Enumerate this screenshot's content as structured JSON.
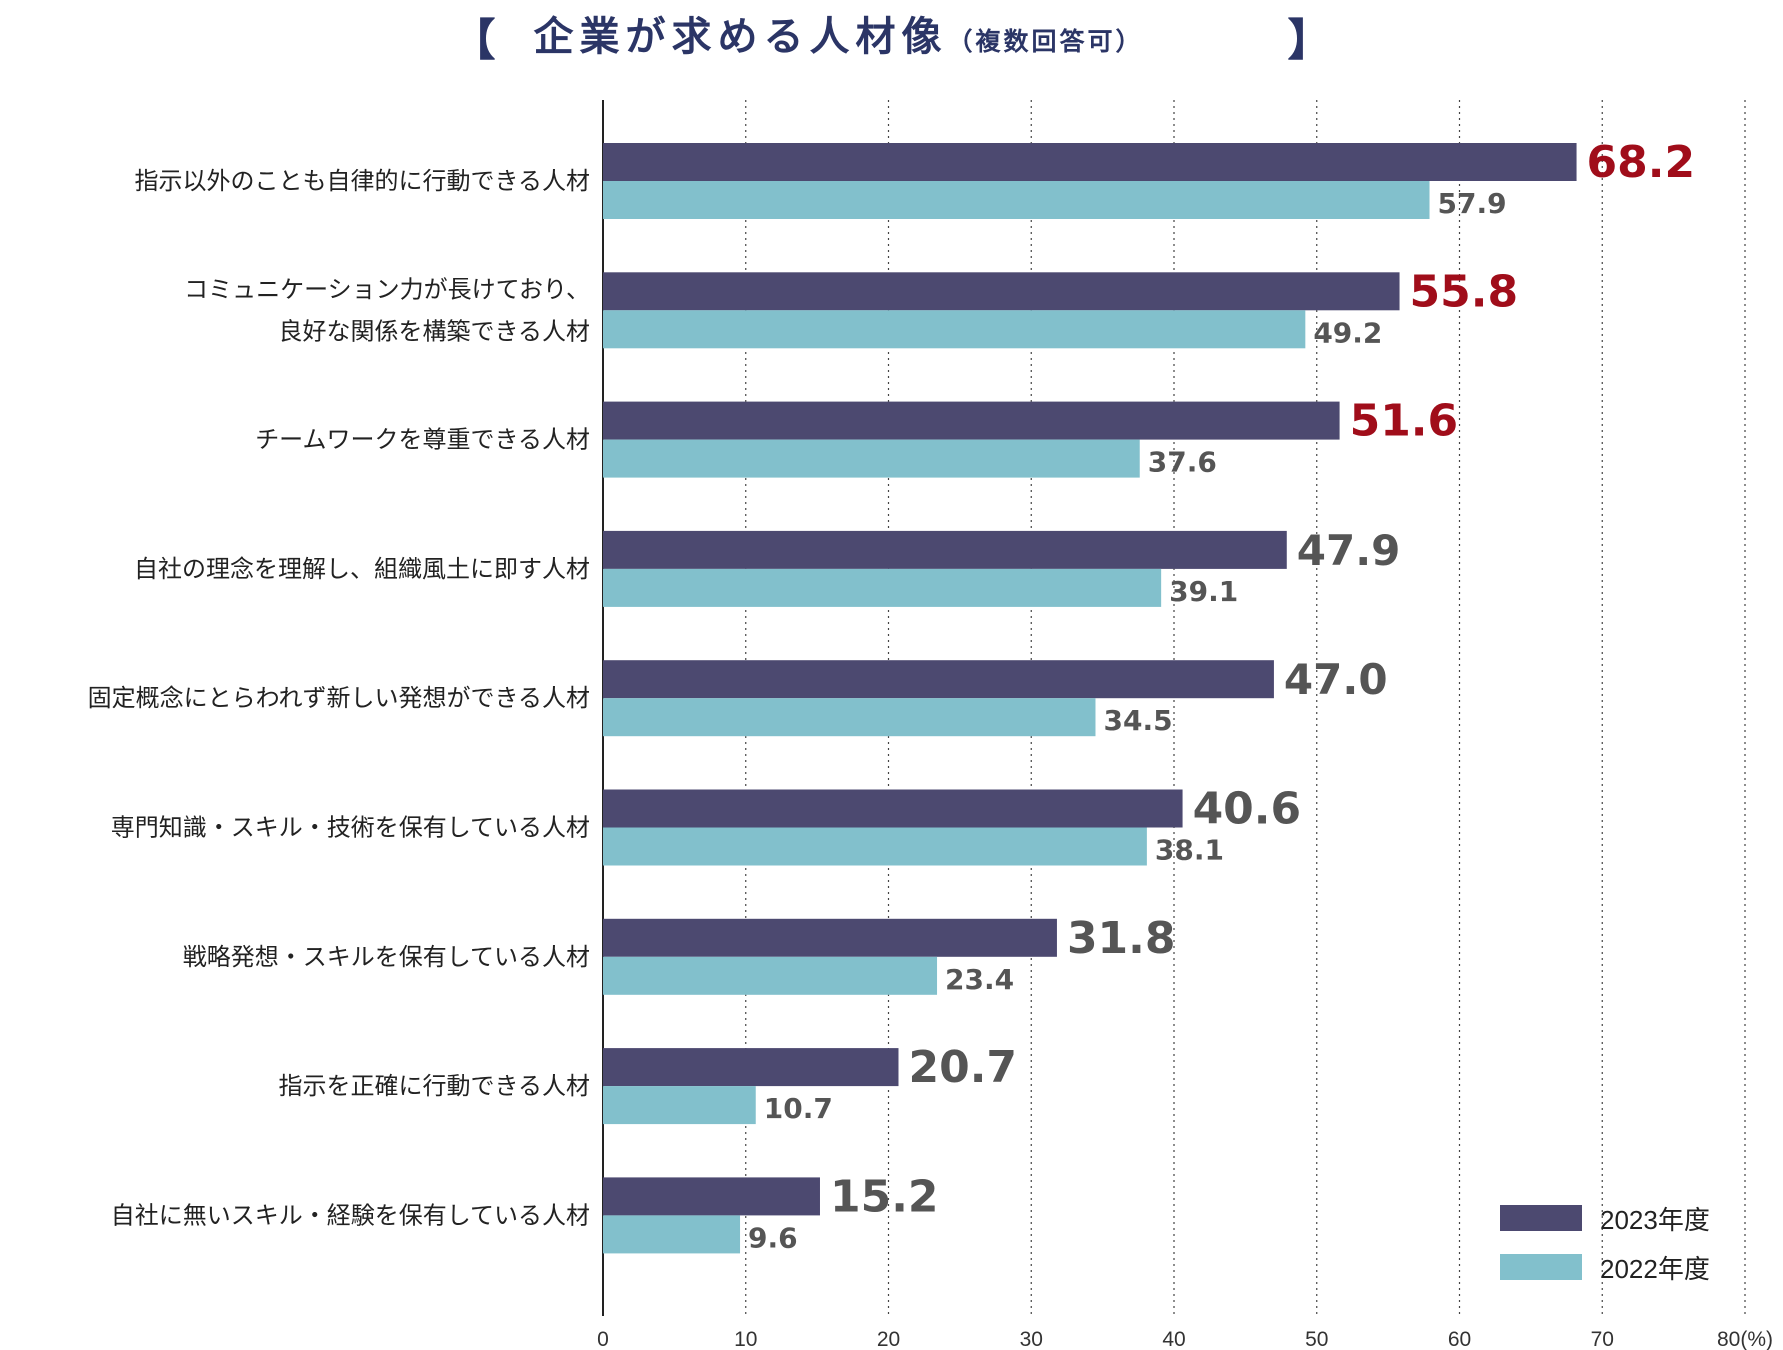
{
  "title": {
    "open_bracket": "【",
    "main": "企業が求める人材像",
    "sub": "（複数回答可）",
    "close_bracket": "】"
  },
  "colors": {
    "series_2023": "#4c4970",
    "series_2022": "#82c0cc",
    "highlight": "#a00d1a",
    "normal_label": "#555555",
    "title": "#2b3566"
  },
  "chart_data": {
    "type": "bar",
    "orientation": "horizontal",
    "title": "企業が求める人材像（複数回答可）",
    "xlabel": "",
    "ylabel": "",
    "x_unit": "(%)",
    "xlim": [
      0,
      80
    ],
    "x_ticks": [
      0,
      10,
      20,
      30,
      40,
      50,
      60,
      70,
      80
    ],
    "grid": "vertical dotted",
    "legend_position": "bottom-right",
    "categories": [
      [
        "指示以外のことも自律的に行動できる人材"
      ],
      [
        "コミュニケーション力が長けており、",
        "良好な関係を構築できる人材"
      ],
      [
        "チームワークを尊重できる人材"
      ],
      [
        "自社の理念を理解し、組織風土に即す人材"
      ],
      [
        "固定概念にとらわれず新しい発想ができる人材"
      ],
      [
        "専門知識・スキル・技術を保有している人材"
      ],
      [
        "戦略発想・スキルを保有している人材"
      ],
      [
        "指示を正確に行動できる人材"
      ],
      [
        "自社に無いスキル・経験を保有している人材"
      ]
    ],
    "series": [
      {
        "name": "2023年度",
        "values": [
          68.2,
          55.8,
          51.6,
          47.9,
          47.0,
          40.6,
          31.8,
          20.7,
          15.2
        ],
        "labels": [
          "68.2",
          "55.8",
          "51.6",
          "47.9",
          "47.0",
          "40.6",
          "31.8",
          "20.7",
          "15.2"
        ],
        "highlighted": [
          true,
          true,
          true,
          false,
          false,
          false,
          false,
          false,
          false
        ]
      },
      {
        "name": "2022年度",
        "values": [
          57.9,
          49.2,
          37.6,
          39.1,
          34.5,
          38.1,
          23.4,
          10.7,
          9.6
        ],
        "labels": [
          "57.9",
          "49.2",
          "37.6",
          "39.1",
          "34.5",
          "38.1",
          "23.4",
          "10.7",
          "9.6"
        ]
      }
    ]
  }
}
